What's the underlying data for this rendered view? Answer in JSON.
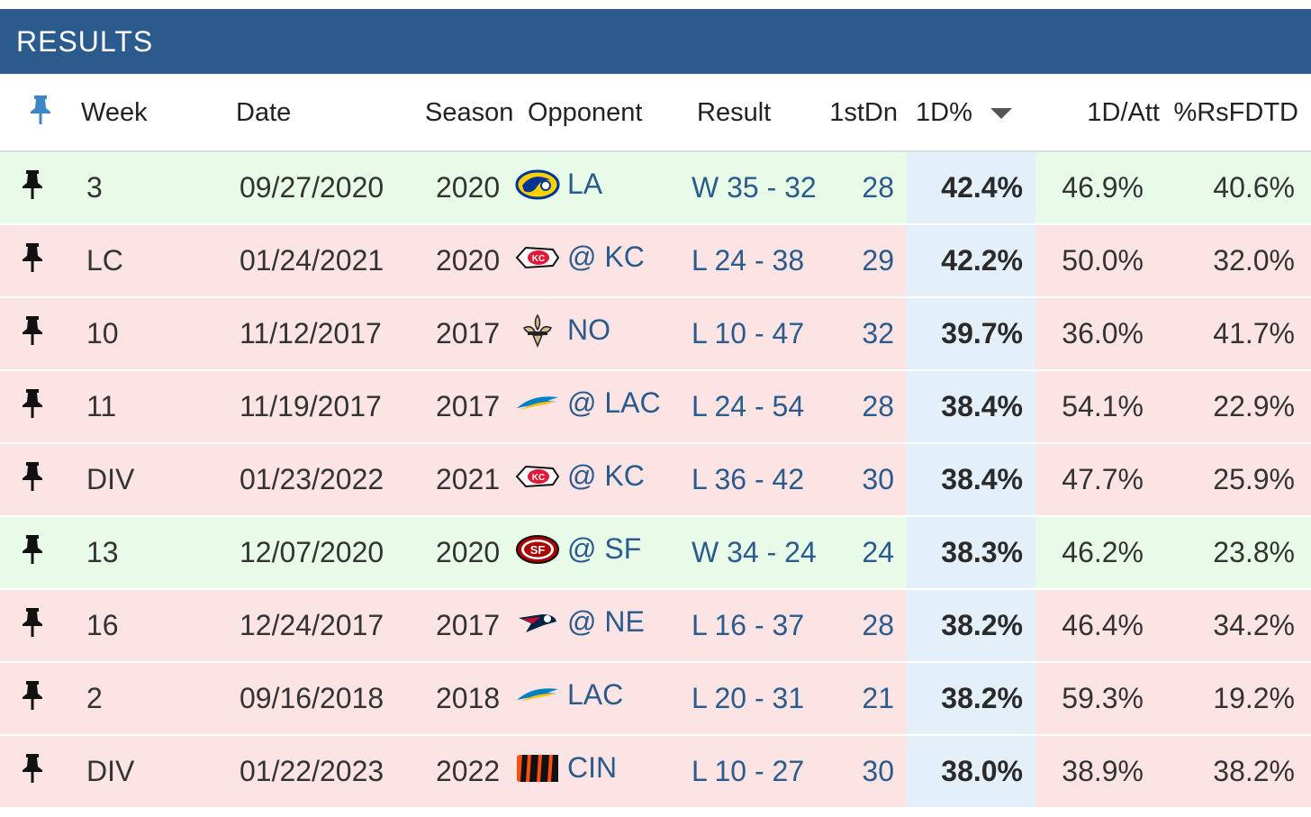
{
  "title": "RESULTS",
  "columns": {
    "week": "Week",
    "date": "Date",
    "season": "Season",
    "opponent": "Opponent",
    "result": "Result",
    "first_downs": "1stDn",
    "first_down_pct": "1D%",
    "first_down_per_att": "1D/Att",
    "rsfdtd": "%RsFDTD"
  },
  "sort": {
    "column": "1D%",
    "direction": "descending"
  },
  "colors": {
    "header_bar": "#2b5b8c",
    "win_row": "#e8fbe8",
    "loss_row": "#fce4e4",
    "sorted_column": "#e3eff9",
    "link": "#2b5b8c"
  },
  "rows": [
    {
      "week": "3",
      "date": "09/27/2020",
      "season": "2020",
      "logo": "rams-logo",
      "opponent": "LA",
      "result": "W 35 - 32",
      "outcome": "win",
      "first_downs": "28",
      "first_down_pct": "42.4%",
      "first_down_per_att": "46.9%",
      "rsfdtd": "40.6%"
    },
    {
      "week": "LC",
      "date": "01/24/2021",
      "season": "2020",
      "logo": "chiefs-logo",
      "opponent": "@ KC",
      "result": "L 24 - 38",
      "outcome": "loss",
      "first_downs": "29",
      "first_down_pct": "42.2%",
      "first_down_per_att": "50.0%",
      "rsfdtd": "32.0%"
    },
    {
      "week": "10",
      "date": "11/12/2017",
      "season": "2017",
      "logo": "saints-logo",
      "opponent": "NO",
      "result": "L 10 - 47",
      "outcome": "loss",
      "first_downs": "32",
      "first_down_pct": "39.7%",
      "first_down_per_att": "36.0%",
      "rsfdtd": "41.7%"
    },
    {
      "week": "11",
      "date": "11/19/2017",
      "season": "2017",
      "logo": "chargers-logo",
      "opponent": "@ LAC",
      "result": "L 24 - 54",
      "outcome": "loss",
      "first_downs": "28",
      "first_down_pct": "38.4%",
      "first_down_per_att": "54.1%",
      "rsfdtd": "22.9%"
    },
    {
      "week": "DIV",
      "date": "01/23/2022",
      "season": "2021",
      "logo": "chiefs-logo",
      "opponent": "@ KC",
      "result": "L 36 - 42",
      "outcome": "loss",
      "first_downs": "30",
      "first_down_pct": "38.4%",
      "first_down_per_att": "47.7%",
      "rsfdtd": "25.9%"
    },
    {
      "week": "13",
      "date": "12/07/2020",
      "season": "2020",
      "logo": "49ers-logo",
      "opponent": "@ SF",
      "result": "W 34 - 24",
      "outcome": "win",
      "first_downs": "24",
      "first_down_pct": "38.3%",
      "first_down_per_att": "46.2%",
      "rsfdtd": "23.8%"
    },
    {
      "week": "16",
      "date": "12/24/2017",
      "season": "2017",
      "logo": "patriots-logo",
      "opponent": "@ NE",
      "result": "L 16 - 37",
      "outcome": "loss",
      "first_downs": "28",
      "first_down_pct": "38.2%",
      "first_down_per_att": "46.4%",
      "rsfdtd": "34.2%"
    },
    {
      "week": "2",
      "date": "09/16/2018",
      "season": "2018",
      "logo": "chargers-logo",
      "opponent": "LAC",
      "result": "L 20 - 31",
      "outcome": "loss",
      "first_downs": "21",
      "first_down_pct": "38.2%",
      "first_down_per_att": "59.3%",
      "rsfdtd": "19.2%"
    },
    {
      "week": "DIV",
      "date": "01/22/2023",
      "season": "2022",
      "logo": "bengals-logo",
      "opponent": "CIN",
      "result": "L 10 - 27",
      "outcome": "loss",
      "first_downs": "30",
      "first_down_pct": "38.0%",
      "first_down_per_att": "38.9%",
      "rsfdtd": "38.2%"
    }
  ]
}
